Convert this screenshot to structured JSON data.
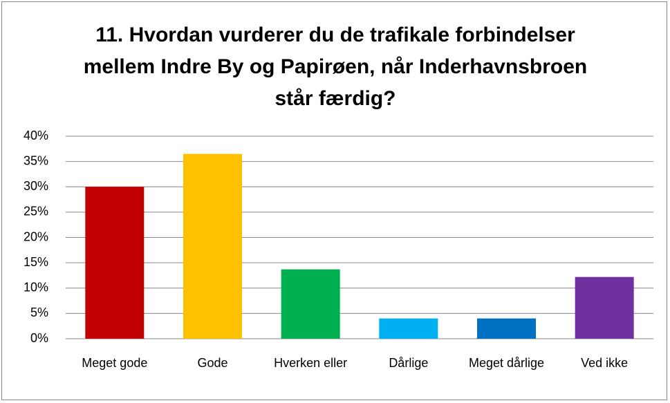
{
  "chart_data": {
    "type": "bar",
    "title": "11. Hvordan vurderer du de trafikale forbindelser mellem Indre By og Papirøen, når Inderhavnsbroen står færdig?",
    "categories": [
      "Meget gode",
      "Gode",
      "Hverken eller",
      "Dårlige",
      "Meget dårlige",
      "Ved ikke"
    ],
    "values": [
      30,
      36.5,
      13.7,
      4,
      4,
      12.2
    ],
    "colors": [
      "#c00000",
      "#ffc000",
      "#00b050",
      "#00b0f0",
      "#0070c0",
      "#7030a0"
    ],
    "ylim": [
      0,
      40
    ],
    "yticks": [
      {
        "value": 0,
        "label": "0%"
      },
      {
        "value": 5,
        "label": "5%"
      },
      {
        "value": 10,
        "label": "10%"
      },
      {
        "value": 15,
        "label": "15%"
      },
      {
        "value": 20,
        "label": "20%"
      },
      {
        "value": 25,
        "label": "25%"
      },
      {
        "value": 30,
        "label": "30%"
      },
      {
        "value": 35,
        "label": "35%"
      },
      {
        "value": 40,
        "label": "40%"
      }
    ],
    "grid": true
  }
}
